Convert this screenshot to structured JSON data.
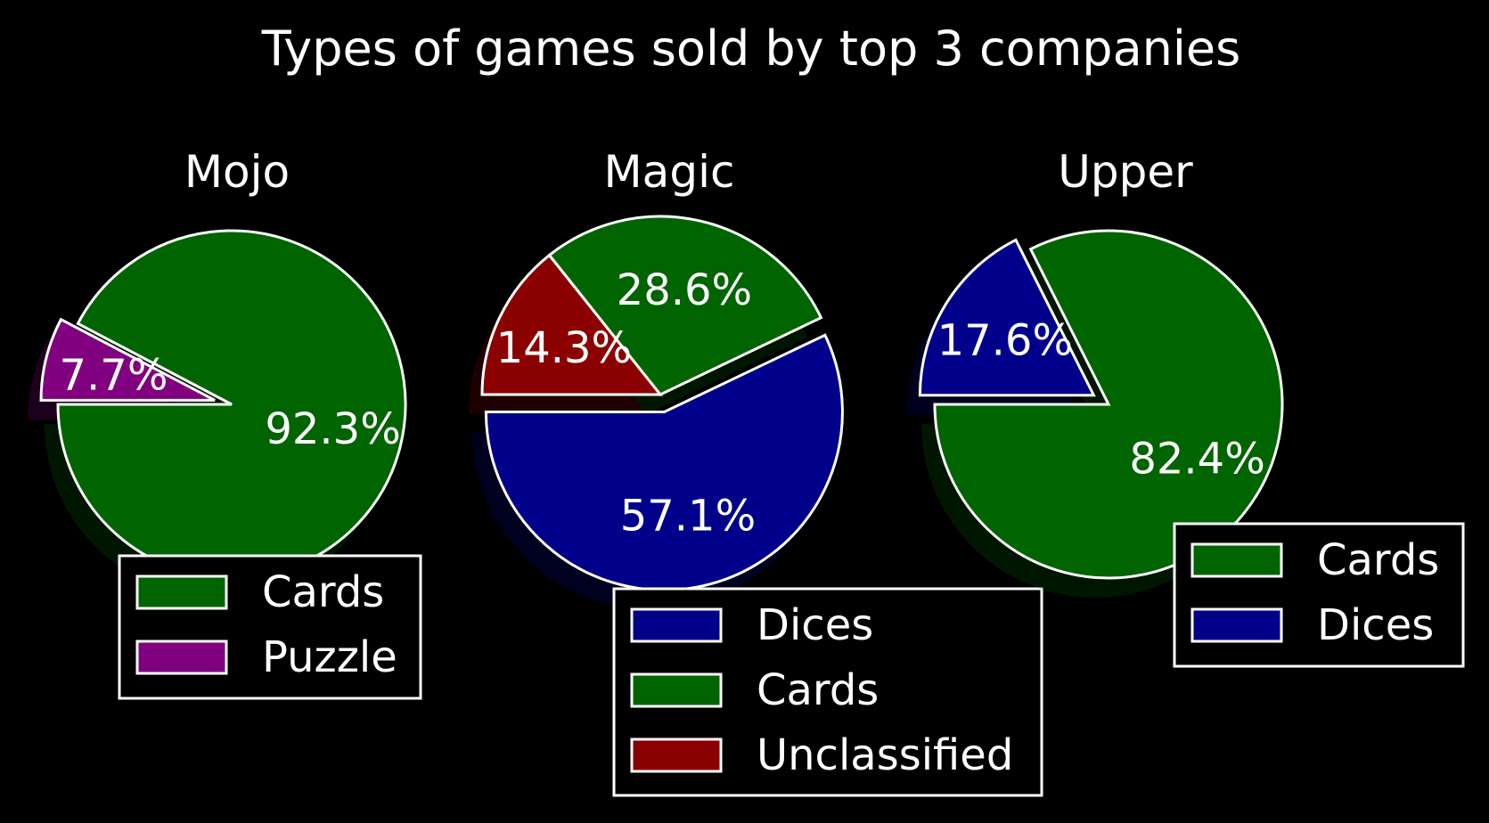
{
  "title": "Types of games sold by top 3 companies",
  "colors": {
    "background": "#000000",
    "foreground": "#ffffff",
    "Cards": "#006400",
    "Puzzle": "#800080",
    "Dices": "#00008b",
    "Unclassified": "#8b0000"
  },
  "chart_data": [
    {
      "type": "pie",
      "title": "Mojo",
      "labels": [
        "Cards",
        "Puzzle"
      ],
      "values": [
        92.3,
        7.7
      ],
      "value_labels": [
        "92.3%",
        "7.7%"
      ],
      "exploded": [
        "Puzzle"
      ],
      "shadow": true,
      "legend": {
        "entries": [
          "Cards",
          "Puzzle"
        ],
        "placement": "below"
      }
    },
    {
      "type": "pie",
      "title": "Magic",
      "labels": [
        "Dices",
        "Cards",
        "Unclassified"
      ],
      "values": [
        57.1,
        28.6,
        14.3
      ],
      "value_labels": [
        "57.1%",
        "28.6%",
        "14.3%"
      ],
      "exploded": [
        "Dices"
      ],
      "shadow": true,
      "legend": {
        "entries": [
          "Dices",
          "Cards",
          "Unclassified"
        ],
        "placement": "below"
      }
    },
    {
      "type": "pie",
      "title": "Upper",
      "labels": [
        "Cards",
        "Dices"
      ],
      "values": [
        82.4,
        17.6
      ],
      "value_labels": [
        "82.4%",
        "17.6%"
      ],
      "exploded": [
        "Dices"
      ],
      "shadow": true,
      "legend": {
        "entries": [
          "Cards",
          "Dices"
        ],
        "placement": "lower-right"
      }
    }
  ]
}
